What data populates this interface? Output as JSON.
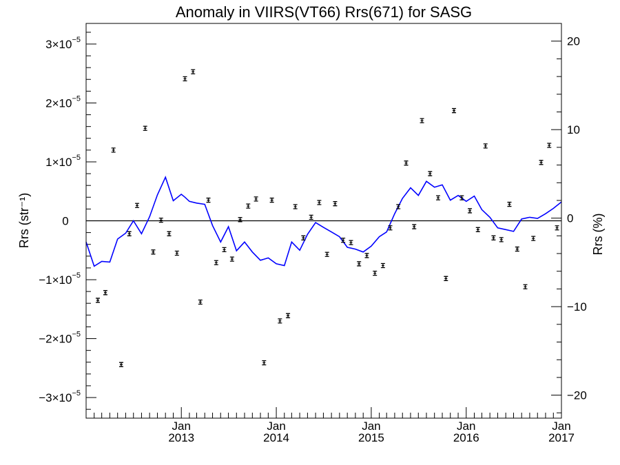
{
  "chart_data": {
    "type": "scatter",
    "title": "Anomaly in VIIRS(VT66) Rrs(671) for SASG",
    "xlabel": "",
    "ylabel": "Rrs (str⁻¹)",
    "y2label": "Rrs (%)",
    "xlim": [
      "2012-01-01",
      "2017-01-01"
    ],
    "ylim": [
      -3.35e-05,
      3.35e-05
    ],
    "y2lim": [
      -22.6,
      22.0
    ],
    "x_ticks": [
      {
        "date": "2013-01-01",
        "month": "Jan",
        "year": "2013"
      },
      {
        "date": "2014-01-01",
        "month": "Jan",
        "year": "2014"
      },
      {
        "date": "2015-01-01",
        "month": "Jan",
        "year": "2015"
      },
      {
        "date": "2016-01-01",
        "month": "Jan",
        "year": "2016"
      },
      {
        "date": "2017-01-01",
        "month": "Jan",
        "year": "2017"
      }
    ],
    "y_ticks": [
      {
        "value": 3e-05,
        "mant": "3",
        "exp": "−5"
      },
      {
        "value": 2e-05,
        "mant": "2",
        "exp": "−5"
      },
      {
        "value": 1e-05,
        "mant": "1",
        "exp": "−5"
      },
      {
        "value": 0,
        "mant": "0",
        "exp": ""
      },
      {
        "value": -1e-05,
        "mant": "−1",
        "exp": "−5"
      },
      {
        "value": -2e-05,
        "mant": "−2",
        "exp": "−5"
      },
      {
        "value": -3e-05,
        "mant": "−3",
        "exp": "−5"
      }
    ],
    "y2_ticks": [
      {
        "value": 20,
        "label": "20"
      },
      {
        "value": 10,
        "label": "10"
      },
      {
        "value": 0,
        "label": "0"
      },
      {
        "value": -10,
        "label": "−10"
      },
      {
        "value": -20,
        "label": "−20"
      }
    ],
    "points_color": "#000000",
    "line_color": "#0000ff",
    "grid": false,
    "series": [
      {
        "kind": "points-with-errorbars",
        "axis": "left",
        "x": [
          "2012-02-15",
          "2012-03-15",
          "2012-04-15",
          "2012-05-15",
          "2012-06-15",
          "2012-07-15",
          "2012-08-15",
          "2012-09-15",
          "2012-10-15",
          "2012-11-15",
          "2012-12-15",
          "2013-01-15",
          "2013-02-15",
          "2013-03-15",
          "2013-04-15",
          "2013-05-15",
          "2013-06-15",
          "2013-07-15",
          "2013-08-15",
          "2013-09-15",
          "2013-10-15",
          "2013-11-15",
          "2013-12-15",
          "2014-01-15",
          "2014-02-15",
          "2014-03-15",
          "2014-04-15",
          "2014-05-15",
          "2014-06-15",
          "2014-07-15",
          "2014-08-15",
          "2014-09-15",
          "2014-10-15",
          "2014-11-15",
          "2014-12-15",
          "2015-01-15",
          "2015-02-15",
          "2015-03-15",
          "2015-04-15",
          "2015-05-15",
          "2015-06-15",
          "2015-07-15",
          "2015-08-15",
          "2015-09-15",
          "2015-10-15",
          "2015-11-15",
          "2015-12-15",
          "2016-01-15",
          "2016-02-15",
          "2016-03-15",
          "2016-04-15",
          "2016-05-15",
          "2016-06-15",
          "2016-07-15",
          "2016-08-15",
          "2016-09-15",
          "2016-10-15",
          "2016-11-15",
          "2016-12-15"
        ],
        "y": [
          -1.35e-05,
          -1.22e-05,
          1.2e-05,
          -2.44e-05,
          -2.2e-06,
          2.6e-06,
          1.57e-05,
          -5.3e-06,
          1e-07,
          -2.2e-06,
          -5.5e-06,
          2.41e-05,
          2.53e-05,
          -1.38e-05,
          3.5e-06,
          -7.1e-06,
          -4.9e-06,
          -6.5e-06,
          2e-07,
          2.5e-06,
          3.7e-06,
          -2.41e-05,
          3.5e-06,
          -1.7e-05,
          -1.61e-05,
          2.4e-06,
          -2.9e-06,
          6e-07,
          3.1e-06,
          -5.7e-06,
          2.9e-06,
          -3.3e-06,
          -3.7e-06,
          -7.3e-06,
          -5.9e-06,
          -8.9e-06,
          -7.6e-06,
          -1.2e-06,
          2.4e-06,
          9.8e-06,
          -1e-06,
          1.7e-05,
          8e-06,
          3.9e-06,
          -9.8e-06,
          1.87e-05,
          3.9e-06,
          1.7e-06,
          -1.5e-06,
          1.27e-05,
          -2.9e-06,
          -3.2e-06,
          2.8e-06,
          -4.8e-06,
          -1.12e-05,
          -3e-06,
          9.9e-06,
          1.28e-05,
          -1.2e-06
        ]
      },
      {
        "kind": "line",
        "axis": "left",
        "x": [
          "2012-01-01",
          "2012-02-01",
          "2012-03-01",
          "2012-04-01",
          "2012-05-01",
          "2012-06-01",
          "2012-07-01",
          "2012-08-01",
          "2012-09-01",
          "2012-10-01",
          "2012-11-01",
          "2012-12-01",
          "2013-01-01",
          "2013-01-15",
          "2013-02-01",
          "2013-03-01",
          "2013-04-01",
          "2013-05-01",
          "2013-06-01",
          "2013-07-01",
          "2013-08-01",
          "2013-09-01",
          "2013-10-01",
          "2013-11-01",
          "2013-12-01",
          "2014-01-01",
          "2014-02-01",
          "2014-03-01",
          "2014-04-01",
          "2014-05-01",
          "2014-06-01",
          "2014-07-01",
          "2014-08-01",
          "2014-09-01",
          "2014-10-01",
          "2014-11-01",
          "2014-12-01",
          "2015-01-01",
          "2015-02-01",
          "2015-03-01",
          "2015-04-01",
          "2015-05-01",
          "2015-06-01",
          "2015-07-01",
          "2015-08-01",
          "2015-09-01",
          "2015-10-01",
          "2015-11-01",
          "2015-12-01",
          "2016-01-01",
          "2016-02-01",
          "2016-03-01",
          "2016-04-01",
          "2016-05-01",
          "2016-06-01",
          "2016-07-01",
          "2016-08-01",
          "2016-09-01",
          "2016-10-01",
          "2016-11-01",
          "2016-12-01",
          "2017-01-01"
        ],
        "y": [
          -3.6e-06,
          -7.7e-06,
          -6.9e-06,
          -7e-06,
          -3.1e-06,
          -2.1e-06,
          0.0,
          -2.2e-06,
          7e-07,
          4.4e-06,
          7.4e-06,
          3.4e-06,
          4.5e-06,
          4e-06,
          3.3e-06,
          3e-06,
          2.8e-06,
          -8e-07,
          -3.6e-06,
          -1e-06,
          -5.1e-06,
          -3.6e-06,
          -5.3e-06,
          -6.7e-06,
          -6.3e-06,
          -7.3e-06,
          -7.6e-06,
          -3.6e-06,
          -5e-06,
          -2.3e-06,
          -3e-07,
          -1.1e-06,
          -1.9e-06,
          -2.7e-06,
          -4.5e-06,
          -4.8e-06,
          -5.3e-06,
          -4.3e-06,
          -2.7e-06,
          -1.9e-06,
          1.2e-06,
          3.8e-06,
          5.6e-06,
          4.3e-06,
          6.7e-06,
          5.7e-06,
          6.1e-06,
          3.5e-06,
          4.3e-06,
          3.3e-06,
          4.2e-06,
          1.9e-06,
          6e-07,
          -1.2e-06,
          -1.5e-06,
          -1.8e-06,
          3e-07,
          6e-07,
          4e-07,
          1.2e-06,
          2.1e-06,
          3.2e-06
        ]
      }
    ]
  }
}
